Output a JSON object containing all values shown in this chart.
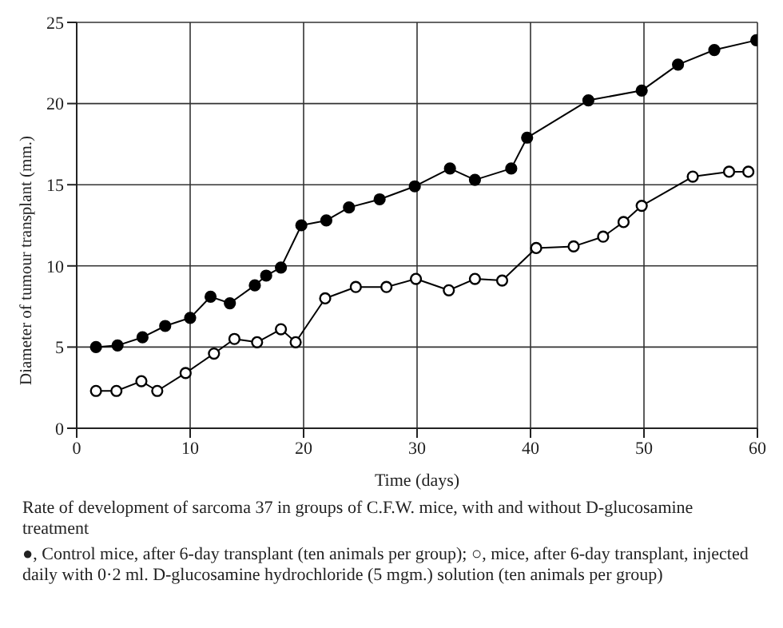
{
  "chart_data": {
    "type": "line",
    "xlabel": "Time (days)",
    "ylabel": "Diameter of tumour transplant (mm.)",
    "xlim": [
      0,
      60
    ],
    "xticks": [
      0,
      10,
      20,
      30,
      40,
      50,
      60
    ],
    "ylim": [
      0,
      25
    ],
    "yticks": [
      0,
      5,
      10,
      15,
      20,
      25
    ],
    "grid": true,
    "marker": "circle",
    "line_style": "solid",
    "series": [
      {
        "color": "#000000",
        "x": [
          1.7,
          3.6,
          5.8,
          7.8,
          10,
          11.8,
          13.5,
          15.7,
          16.7,
          18,
          19.8,
          22,
          24,
          26.7,
          29.8,
          32.9,
          35.1,
          38.3,
          39.7,
          45.1,
          49.8,
          53,
          56.2,
          59.9
        ],
        "values": [
          5.0,
          5.1,
          5.6,
          6.3,
          6.8,
          8.1,
          7.7,
          8.8,
          9.4,
          9.9,
          12.5,
          12.8,
          13.6,
          14.1,
          14.9,
          16.0,
          15.3,
          16.0,
          17.9,
          20.2,
          20.8,
          22.4,
          23.3,
          23.9
        ]
      },
      {
        "color": "#000000",
        "x": [
          1.7,
          3.5,
          5.7,
          7.1,
          9.6,
          12.1,
          13.9,
          15.9,
          18,
          19.3,
          21.9,
          24.6,
          27.3,
          29.9,
          32.8,
          35.1,
          37.5,
          40.5,
          43.8,
          46.4,
          48.2,
          49.8,
          54.3,
          57.5,
          59.2
        ],
        "values": [
          2.3,
          2.3,
          2.9,
          2.3,
          3.4,
          4.6,
          5.5,
          5.3,
          6.1,
          5.3,
          8.0,
          8.7,
          8.7,
          9.2,
          8.5,
          9.2,
          9.1,
          11.1,
          11.2,
          11.8,
          12.7,
          13.7,
          15.5,
          15.8,
          15.8
        ]
      }
    ],
    "annotations": [
      "Rate of development of sarcoma 37 in groups of C.F.W. mice, with and without D-glucosamine treatment",
      "●, Control mice, after 6-day transplant (ten animals per group); ○, mice, after 6-day transplant, injected daily with 0·2 ml. D-glucosamine hydrochloride (5 mgm.) solution (ten animals per group)"
    ]
  }
}
